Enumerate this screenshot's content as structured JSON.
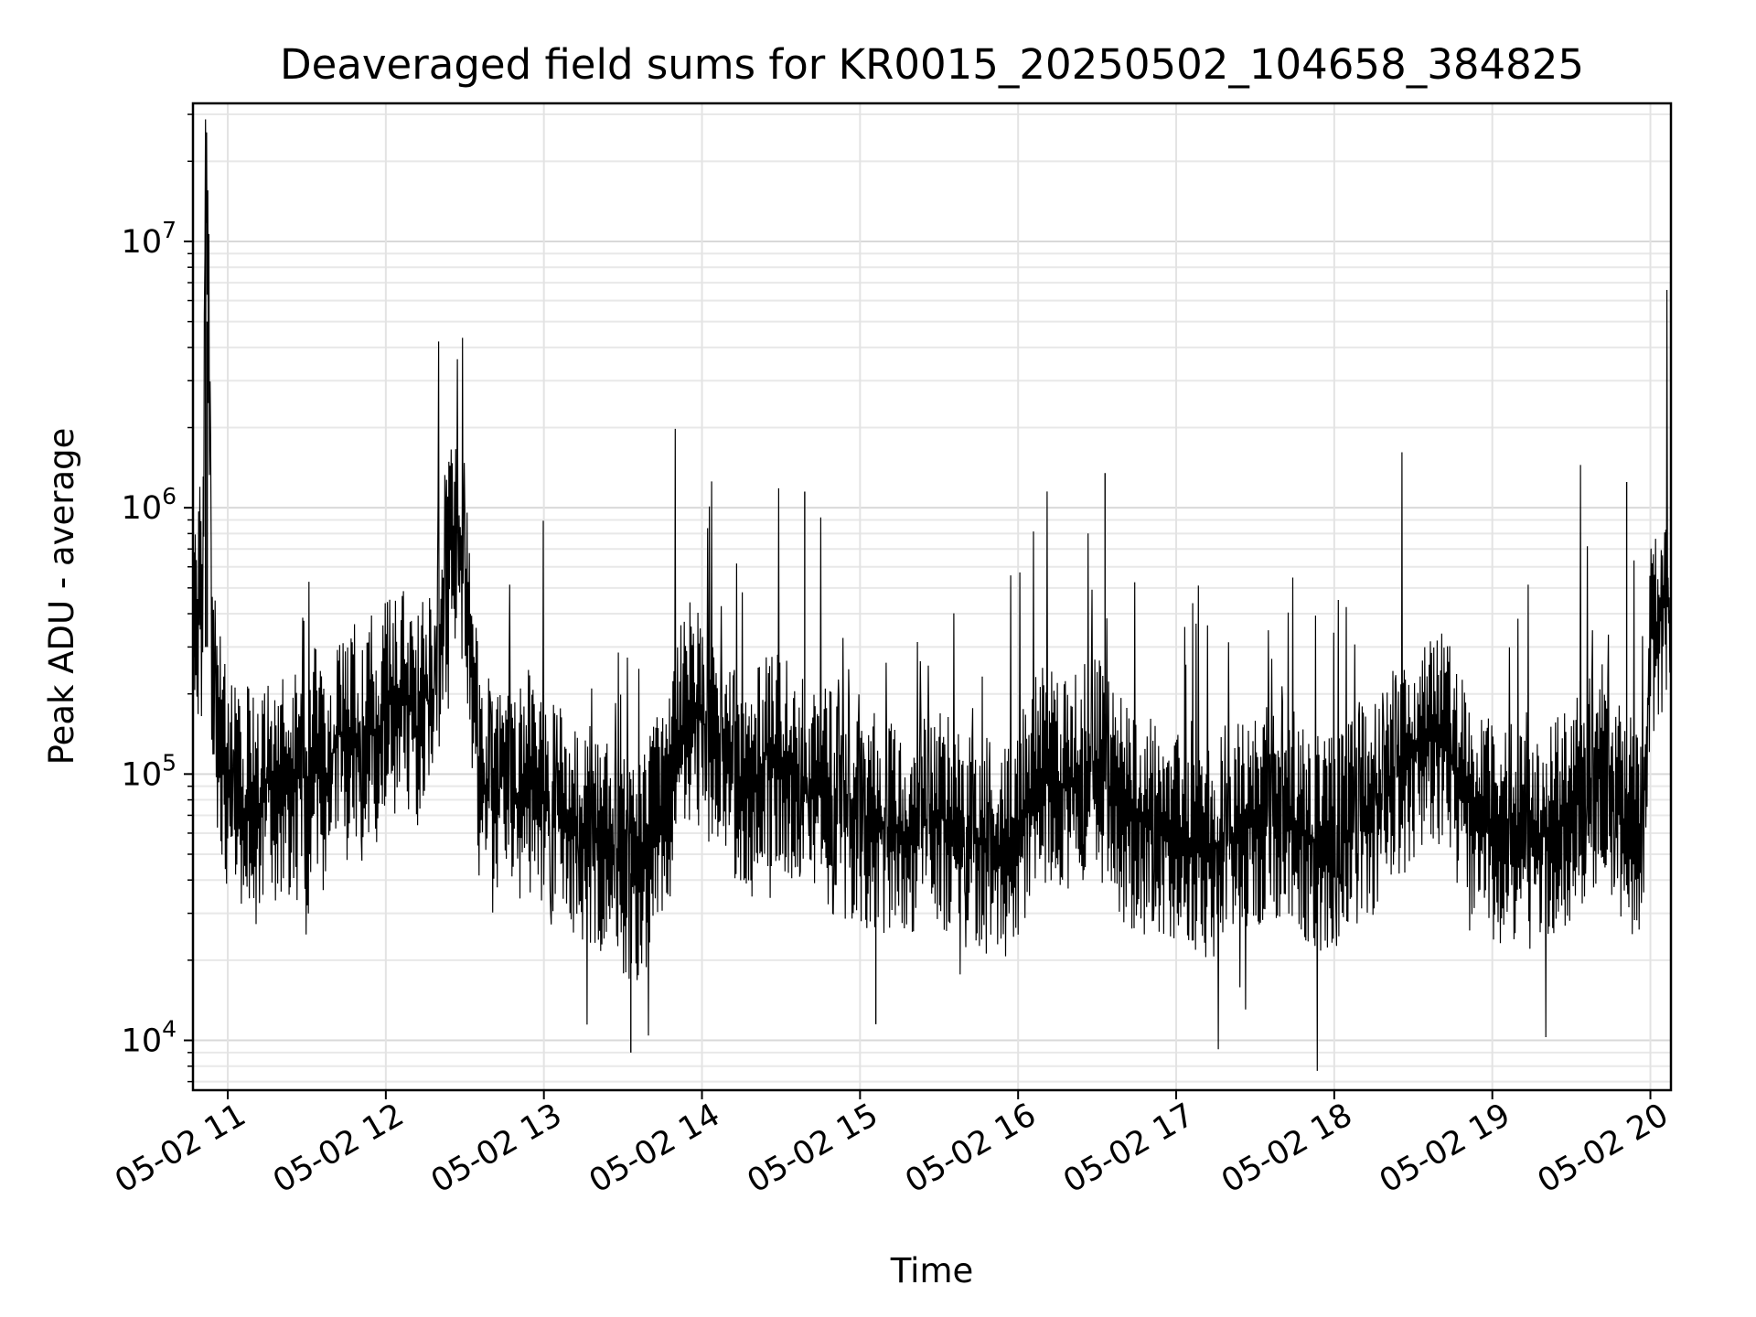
{
  "chart_data": {
    "type": "line",
    "title": "Deaveraged field sums for KR0015_20250502_104658_384825",
    "xlabel": "Time",
    "ylabel": "Peak ADU - average",
    "yscale": "log",
    "ylim": [
      6500,
      33000000
    ],
    "xlim": [
      "05-02 10:47",
      "05-02 20:08"
    ],
    "grid": true,
    "line_color": "#000000",
    "x_ticks": [
      {
        "hour": 11,
        "label": "05-02 11"
      },
      {
        "hour": 12,
        "label": "05-02 12"
      },
      {
        "hour": 13,
        "label": "05-02 13"
      },
      {
        "hour": 14,
        "label": "05-02 14"
      },
      {
        "hour": 15,
        "label": "05-02 15"
      },
      {
        "hour": 16,
        "label": "05-02 16"
      },
      {
        "hour": 17,
        "label": "05-02 17"
      },
      {
        "hour": 18,
        "label": "05-02 18"
      },
      {
        "hour": 19,
        "label": "05-02 19"
      },
      {
        "hour": 20,
        "label": "05-02 20"
      }
    ],
    "y_ticks": [
      {
        "value": 10000,
        "base": "10",
        "exp": "4"
      },
      {
        "value": 100000,
        "base": "10",
        "exp": "5"
      },
      {
        "value": 1000000,
        "base": "10",
        "exp": "6"
      },
      {
        "value": 10000000,
        "base": "10",
        "exp": "7"
      }
    ],
    "series": [
      {
        "x_unit": "hour of day on 2025-05-02",
        "x": [
          10.78,
          10.8,
          10.82,
          10.84,
          10.86,
          10.88,
          10.9,
          10.93,
          10.96,
          11.0,
          11.05,
          11.1,
          11.15,
          11.2,
          11.25,
          11.3,
          11.35,
          11.4,
          11.45,
          11.5,
          11.55,
          11.6,
          11.65,
          11.7,
          11.75,
          11.8,
          11.85,
          11.9,
          11.95,
          12.0,
          12.05,
          12.1,
          12.15,
          12.2,
          12.25,
          12.3,
          12.35,
          12.4,
          12.45,
          12.5,
          12.55,
          12.6,
          12.65,
          12.7,
          12.75,
          12.8,
          12.85,
          12.9,
          12.95,
          13.0,
          13.1,
          13.2,
          13.3,
          13.4,
          13.5,
          13.6,
          13.7,
          13.8,
          13.9,
          14.0,
          14.1,
          14.2,
          14.3,
          14.4,
          14.5,
          14.6,
          14.7,
          14.8,
          14.9,
          15.0,
          15.1,
          15.2,
          15.3,
          15.4,
          15.5,
          15.6,
          15.7,
          15.8,
          15.9,
          16.0,
          16.1,
          16.2,
          16.3,
          16.4,
          16.5,
          16.6,
          16.7,
          16.8,
          16.9,
          17.0,
          17.1,
          17.2,
          17.3,
          17.4,
          17.5,
          17.6,
          17.7,
          17.8,
          17.9,
          18.0,
          18.1,
          18.2,
          18.3,
          18.4,
          18.5,
          18.6,
          18.7,
          18.8,
          18.9,
          19.0,
          19.1,
          19.2,
          19.3,
          19.4,
          19.5,
          19.6,
          19.7,
          19.8,
          19.9,
          19.95,
          20.0,
          20.05,
          20.1,
          20.13
        ],
        "y": [
          900000,
          260000,
          500000,
          330000,
          23000000,
          5000000,
          190000,
          160000,
          120000,
          95000,
          80000,
          70000,
          95000,
          75000,
          100000,
          85000,
          90000,
          80000,
          120000,
          60000,
          140000,
          85000,
          110000,
          160000,
          110000,
          150000,
          120000,
          160000,
          130000,
          200000,
          170000,
          220000,
          180000,
          150000,
          200000,
          170000,
          300000,
          700000,
          800000,
          500000,
          260000,
          85000,
          90000,
          70000,
          120000,
          90000,
          80000,
          100000,
          75000,
          85000,
          70000,
          65000,
          60000,
          55000,
          45000,
          40000,
          60000,
          90000,
          180000,
          160000,
          120000,
          100000,
          80000,
          120000,
          110000,
          100000,
          90000,
          80000,
          75000,
          70000,
          65000,
          60000,
          60000,
          65000,
          70000,
          60000,
          55000,
          55000,
          50000,
          60000,
          90000,
          100000,
          90000,
          100000,
          110000,
          80000,
          70000,
          65000,
          60000,
          60000,
          55000,
          50000,
          55000,
          60000,
          65000,
          70000,
          75000,
          60000,
          55000,
          55000,
          60000,
          75000,
          80000,
          100000,
          120000,
          140000,
          130000,
          90000,
          70000,
          60000,
          60000,
          55000,
          60000,
          65000,
          70000,
          90000,
          100000,
          70000,
          60000,
          50000,
          400000,
          350000,
          500000,
          400000
        ],
        "peaks": [
          {
            "x": 12.45,
            "y": 1100000
          },
          {
            "x": 14.65,
            "y": 1150000
          },
          {
            "x": 16.55,
            "y": 1350000
          },
          {
            "x": 19.85,
            "y": 1250000
          },
          {
            "x": 13.55,
            "y": 9000
          },
          {
            "x": 15.1,
            "y": 11500
          }
        ]
      }
    ]
  }
}
